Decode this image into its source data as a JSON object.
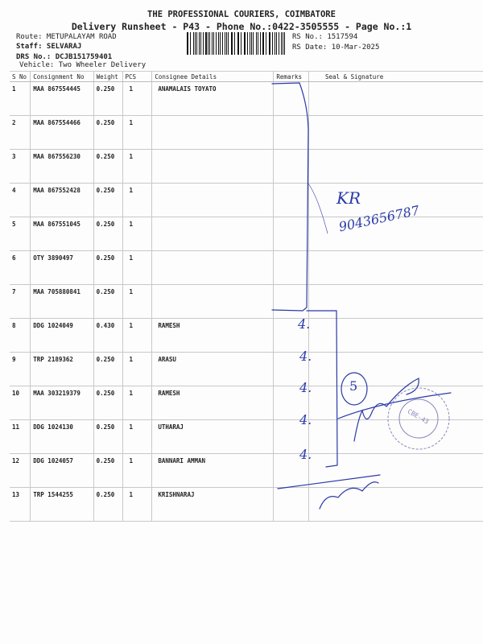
{
  "header": {
    "company": "THE PROFESSIONAL COURIERS, COIMBATORE",
    "subtitle": "Delivery Runsheet - P43 - Phone No.:0422-3505555 - Page No.:1",
    "route": "Route: METUPALAYAM ROAD",
    "staff": "Staff: SELVARAJ",
    "drs_no": "DRS No.: DCJB151759401",
    "vehicle": "Vehicle: Two Wheeler Delivery",
    "rs_no": "RS No.: 1517594",
    "rs_date": "RS Date: 10-Mar-2025"
  },
  "table": {
    "columns": [
      "S No",
      "Consignment No",
      "Weight",
      "PCS",
      "Consignee Details",
      "Remarks",
      "Seal & Signature"
    ],
    "rows": [
      {
        "sno": "1",
        "cn": "MAA 867554445",
        "weight": "0.250",
        "pcs": "1",
        "consignee": "ANAMALAIS TOYATO"
      },
      {
        "sno": "2",
        "cn": "MAA 867554466",
        "weight": "0.250",
        "pcs": "1",
        "consignee": ""
      },
      {
        "sno": "3",
        "cn": "MAA 867556230",
        "weight": "0.250",
        "pcs": "1",
        "consignee": ""
      },
      {
        "sno": "4",
        "cn": "MAA 867552428",
        "weight": "0.250",
        "pcs": "1",
        "consignee": ""
      },
      {
        "sno": "5",
        "cn": "MAA 867551045",
        "weight": "0.250",
        "pcs": "1",
        "consignee": ""
      },
      {
        "sno": "6",
        "cn": "OTY 3890497",
        "weight": "0.250",
        "pcs": "1",
        "consignee": ""
      },
      {
        "sno": "7",
        "cn": "MAA 705880841",
        "weight": "0.250",
        "pcs": "1",
        "consignee": ""
      },
      {
        "sno": "8",
        "cn": "DDG 1024049",
        "weight": "0.430",
        "pcs": "1",
        "consignee": "RAMESH"
      },
      {
        "sno": "9",
        "cn": "TRP 2189362",
        "weight": "0.250",
        "pcs": "1",
        "consignee": "ARASU"
      },
      {
        "sno": "10",
        "cn": "MAA 303219379",
        "weight": "0.250",
        "pcs": "1",
        "consignee": "RAMESH"
      },
      {
        "sno": "11",
        "cn": "DDG 1024130",
        "weight": "0.250",
        "pcs": "1",
        "consignee": "UTHARAJ"
      },
      {
        "sno": "12",
        "cn": "DDG 1024057",
        "weight": "0.250",
        "pcs": "1",
        "consignee": "BANNARI AMMAN"
      },
      {
        "sno": "13",
        "cn": "TRP 1544255",
        "weight": "0.250",
        "pcs": "1",
        "consignee": "KRISHNARAJ"
      }
    ]
  },
  "handwriting": {
    "initials": "KR",
    "phone": "9043656787",
    "remark_marks": [
      "4.",
      "4.",
      "4.",
      "4.",
      "4."
    ],
    "circled_count": "5",
    "stamp_text": "CBE-43",
    "ink_color": "#2a3aa8",
    "stamp_color": "#8a86b8"
  }
}
